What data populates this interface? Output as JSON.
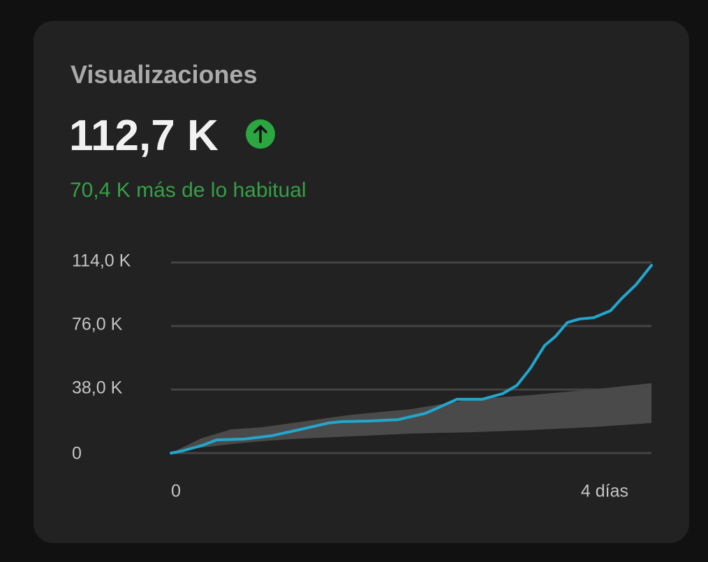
{
  "card": {
    "title": "Visualizaciones",
    "value": "112,7 K",
    "note": "70,4 K más de lo habitual"
  },
  "chart_data": {
    "type": "line",
    "xlim": [
      0,
      4
    ],
    "xticks": [
      0,
      {
        "value": 4,
        "label": "4 días"
      }
    ],
    "ylim": [
      0,
      114000
    ],
    "yticks": [
      0,
      {
        "value": 38000,
        "label": "38,0 K"
      },
      {
        "value": 76000,
        "label": "76,0 K"
      },
      {
        "value": 114000,
        "label": "114,0 K"
      }
    ],
    "grid": true,
    "band": {
      "color": "#4a4a4a",
      "x": [
        0,
        0.25,
        0.5,
        0.75,
        1,
        1.5,
        2,
        2.5,
        3,
        3.5,
        4
      ],
      "upper": [
        0,
        8800,
        14200,
        15400,
        17900,
        22900,
        26300,
        32200,
        34700,
        38000,
        41800
      ],
      "lower": [
        0,
        3300,
        5400,
        7100,
        8400,
        10000,
        11700,
        12500,
        13800,
        15500,
        18000
      ]
    },
    "series": [
      {
        "color": "#22a6cc",
        "x": [
          0,
          0.09,
          0.26,
          0.38,
          0.61,
          0.84,
          1.08,
          1.31,
          1.42,
          1.66,
          1.89,
          2.12,
          2.38,
          2.59,
          2.76,
          2.88,
          2.99,
          3.11,
          3.2,
          3.3,
          3.4,
          3.52,
          3.66,
          3.75,
          3.87,
          4.0
        ],
        "values": [
          0,
          1250,
          4600,
          7900,
          8400,
          10400,
          14200,
          18000,
          18800,
          19200,
          20000,
          23800,
          32200,
          32200,
          35500,
          40500,
          50500,
          64300,
          69700,
          78100,
          80200,
          81000,
          85200,
          92300,
          100600,
          112300
        ]
      }
    ]
  }
}
